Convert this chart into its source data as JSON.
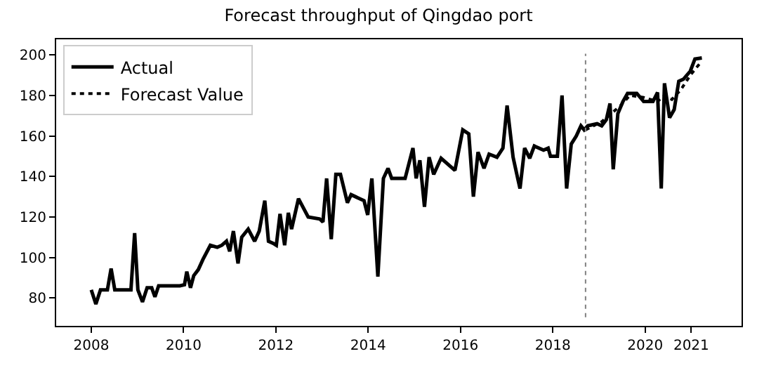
{
  "chart_data": {
    "type": "line",
    "title": "Forecast throughput of Qingdao port",
    "xlim": [
      2007.24,
      2022.09
    ],
    "ylim": [
      66.2,
      207.7
    ],
    "xticks": [
      2008,
      2010,
      2012,
      2014,
      2016,
      2018,
      2020,
      2021
    ],
    "yticks": [
      80,
      100,
      120,
      140,
      160,
      180,
      200
    ],
    "legend": "top left",
    "marker": "none",
    "ref_lines": [
      {
        "axis": "x",
        "value": 2018.71,
        "color": "#808080",
        "line_style": "dotted"
      }
    ],
    "series": [
      {
        "name": "Actual",
        "color": "#000000",
        "line_style": "solid",
        "x": [
          2008.0,
          2008.1,
          2008.2,
          2008.35,
          2008.43,
          2008.51,
          2008.86,
          2008.94,
          2009.01,
          2009.11,
          2009.21,
          2009.31,
          2009.38,
          2009.46,
          2009.92,
          2010.02,
          2010.07,
          2010.15,
          2010.22,
          2010.32,
          2010.42,
          2010.58,
          2010.73,
          2010.83,
          2010.93,
          2011.0,
          2011.08,
          2011.18,
          2011.26,
          2011.4,
          2011.54,
          2011.64,
          2011.76,
          2011.84,
          2011.94,
          2012.01,
          2012.09,
          2012.19,
          2012.27,
          2012.34,
          2012.49,
          2012.7,
          2012.95,
          2013.02,
          2013.1,
          2013.2,
          2013.3,
          2013.4,
          2013.55,
          2013.63,
          2013.91,
          2013.99,
          2014.08,
          2014.21,
          2014.33,
          2014.43,
          2014.51,
          2014.8,
          2014.97,
          2015.04,
          2015.12,
          2015.22,
          2015.32,
          2015.42,
          2015.58,
          2015.88,
          2016.05,
          2016.18,
          2016.28,
          2016.38,
          2016.51,
          2016.62,
          2016.79,
          2016.92,
          2017.01,
          2017.14,
          2017.24,
          2017.29,
          2017.39,
          2017.5,
          2017.6,
          2017.8,
          2017.9,
          2017.95,
          2018.1,
          2018.2,
          2018.3,
          2018.4,
          2018.51,
          2018.61,
          2018.68,
          2018.76,
          2018.96,
          2019.06,
          2019.16,
          2019.24,
          2019.31,
          2019.41,
          2019.52,
          2019.62,
          2019.82,
          2019.97,
          2020.17,
          2020.27,
          2020.35,
          2020.42,
          2020.53,
          2020.63,
          2020.73,
          2020.83,
          2020.98,
          2021.08,
          2021.23
        ],
        "values": [
          84,
          77,
          84,
          84,
          94.5,
          84,
          84,
          112,
          84,
          78,
          85,
          85,
          80.5,
          86,
          86,
          86.5,
          93,
          85,
          91,
          94,
          99,
          106,
          105,
          106,
          108,
          103,
          113,
          97,
          110,
          114,
          108,
          113,
          128,
          108,
          107,
          106,
          121.5,
          106,
          122,
          114,
          129,
          120,
          119,
          117.5,
          139,
          109,
          141,
          141,
          127,
          131,
          128,
          121,
          139,
          90.5,
          139,
          144,
          139,
          139,
          154,
          139,
          148,
          125,
          149.5,
          141,
          149,
          143,
          163,
          161,
          130,
          152,
          144,
          151,
          149.5,
          154,
          175,
          149.5,
          139,
          134,
          154,
          149,
          155,
          153,
          154,
          150,
          150,
          180,
          134,
          156,
          160,
          165,
          163,
          165,
          166,
          165,
          168,
          176,
          143.5,
          171,
          177,
          181,
          181,
          177,
          177,
          181.5,
          134,
          186,
          169,
          173,
          187,
          188,
          192,
          198,
          198.5
        ]
      },
      {
        "name": "Forecast Value",
        "color": "#000000",
        "line_style": "dotted",
        "x": [
          2018.71,
          2019.06,
          2019.47,
          2019.67,
          2019.97,
          2020.27,
          2020.42,
          2020.58,
          2020.78,
          2020.98,
          2021.23
        ],
        "values": [
          163,
          167,
          175,
          180,
          179,
          177,
          180,
          178,
          183,
          190,
          197
        ]
      }
    ]
  }
}
